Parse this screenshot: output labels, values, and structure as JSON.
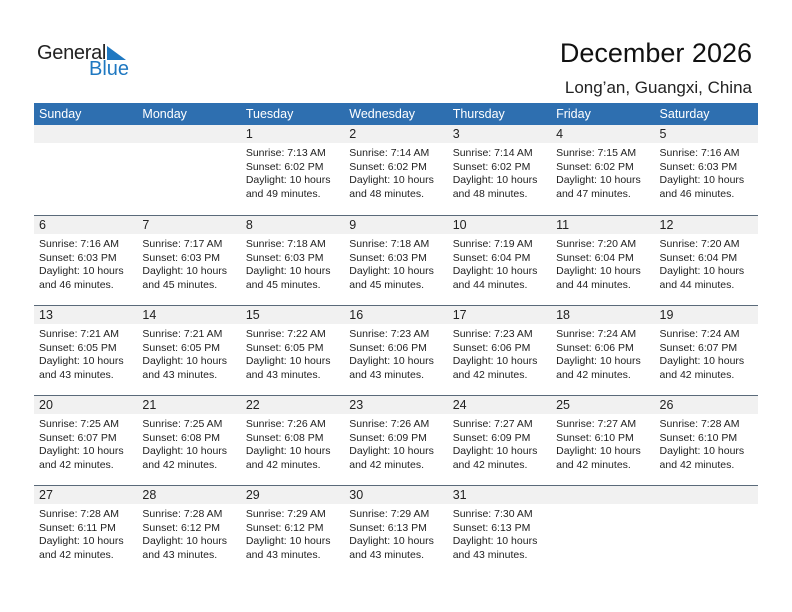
{
  "logo": {
    "general": "General",
    "blue": "Blue"
  },
  "title": "December 2026",
  "location": "Long’an, Guangxi, China",
  "colors": {
    "header": "#2e6fb0",
    "logo_blue": "#1f78c1"
  },
  "days": [
    "Sunday",
    "Monday",
    "Tuesday",
    "Wednesday",
    "Thursday",
    "Friday",
    "Saturday"
  ],
  "weeks": [
    [
      null,
      null,
      {
        "day": "1",
        "sunrise": "Sunrise: 7:13 AM",
        "sunset": "Sunset: 6:02 PM",
        "daylight": "Daylight: 10 hours",
        "minutes": "and 49 minutes."
      },
      {
        "day": "2",
        "sunrise": "Sunrise: 7:14 AM",
        "sunset": "Sunset: 6:02 PM",
        "daylight": "Daylight: 10 hours",
        "minutes": "and 48 minutes."
      },
      {
        "day": "3",
        "sunrise": "Sunrise: 7:14 AM",
        "sunset": "Sunset: 6:02 PM",
        "daylight": "Daylight: 10 hours",
        "minutes": "and 48 minutes."
      },
      {
        "day": "4",
        "sunrise": "Sunrise: 7:15 AM",
        "sunset": "Sunset: 6:02 PM",
        "daylight": "Daylight: 10 hours",
        "minutes": "and 47 minutes."
      },
      {
        "day": "5",
        "sunrise": "Sunrise: 7:16 AM",
        "sunset": "Sunset: 6:03 PM",
        "daylight": "Daylight: 10 hours",
        "minutes": "and 46 minutes."
      }
    ],
    [
      {
        "day": "6",
        "sunrise": "Sunrise: 7:16 AM",
        "sunset": "Sunset: 6:03 PM",
        "daylight": "Daylight: 10 hours",
        "minutes": "and 46 minutes."
      },
      {
        "day": "7",
        "sunrise": "Sunrise: 7:17 AM",
        "sunset": "Sunset: 6:03 PM",
        "daylight": "Daylight: 10 hours",
        "minutes": "and 45 minutes."
      },
      {
        "day": "8",
        "sunrise": "Sunrise: 7:18 AM",
        "sunset": "Sunset: 6:03 PM",
        "daylight": "Daylight: 10 hours",
        "minutes": "and 45 minutes."
      },
      {
        "day": "9",
        "sunrise": "Sunrise: 7:18 AM",
        "sunset": "Sunset: 6:03 PM",
        "daylight": "Daylight: 10 hours",
        "minutes": "and 45 minutes."
      },
      {
        "day": "10",
        "sunrise": "Sunrise: 7:19 AM",
        "sunset": "Sunset: 6:04 PM",
        "daylight": "Daylight: 10 hours",
        "minutes": "and 44 minutes."
      },
      {
        "day": "11",
        "sunrise": "Sunrise: 7:20 AM",
        "sunset": "Sunset: 6:04 PM",
        "daylight": "Daylight: 10 hours",
        "minutes": "and 44 minutes."
      },
      {
        "day": "12",
        "sunrise": "Sunrise: 7:20 AM",
        "sunset": "Sunset: 6:04 PM",
        "daylight": "Daylight: 10 hours",
        "minutes": "and 44 minutes."
      }
    ],
    [
      {
        "day": "13",
        "sunrise": "Sunrise: 7:21 AM",
        "sunset": "Sunset: 6:05 PM",
        "daylight": "Daylight: 10 hours",
        "minutes": "and 43 minutes."
      },
      {
        "day": "14",
        "sunrise": "Sunrise: 7:21 AM",
        "sunset": "Sunset: 6:05 PM",
        "daylight": "Daylight: 10 hours",
        "minutes": "and 43 minutes."
      },
      {
        "day": "15",
        "sunrise": "Sunrise: 7:22 AM",
        "sunset": "Sunset: 6:05 PM",
        "daylight": "Daylight: 10 hours",
        "minutes": "and 43 minutes."
      },
      {
        "day": "16",
        "sunrise": "Sunrise: 7:23 AM",
        "sunset": "Sunset: 6:06 PM",
        "daylight": "Daylight: 10 hours",
        "minutes": "and 43 minutes."
      },
      {
        "day": "17",
        "sunrise": "Sunrise: 7:23 AM",
        "sunset": "Sunset: 6:06 PM",
        "daylight": "Daylight: 10 hours",
        "minutes": "and 42 minutes."
      },
      {
        "day": "18",
        "sunrise": "Sunrise: 7:24 AM",
        "sunset": "Sunset: 6:06 PM",
        "daylight": "Daylight: 10 hours",
        "minutes": "and 42 minutes."
      },
      {
        "day": "19",
        "sunrise": "Sunrise: 7:24 AM",
        "sunset": "Sunset: 6:07 PM",
        "daylight": "Daylight: 10 hours",
        "minutes": "and 42 minutes."
      }
    ],
    [
      {
        "day": "20",
        "sunrise": "Sunrise: 7:25 AM",
        "sunset": "Sunset: 6:07 PM",
        "daylight": "Daylight: 10 hours",
        "minutes": "and 42 minutes."
      },
      {
        "day": "21",
        "sunrise": "Sunrise: 7:25 AM",
        "sunset": "Sunset: 6:08 PM",
        "daylight": "Daylight: 10 hours",
        "minutes": "and 42 minutes."
      },
      {
        "day": "22",
        "sunrise": "Sunrise: 7:26 AM",
        "sunset": "Sunset: 6:08 PM",
        "daylight": "Daylight: 10 hours",
        "minutes": "and 42 minutes."
      },
      {
        "day": "23",
        "sunrise": "Sunrise: 7:26 AM",
        "sunset": "Sunset: 6:09 PM",
        "daylight": "Daylight: 10 hours",
        "minutes": "and 42 minutes."
      },
      {
        "day": "24",
        "sunrise": "Sunrise: 7:27 AM",
        "sunset": "Sunset: 6:09 PM",
        "daylight": "Daylight: 10 hours",
        "minutes": "and 42 minutes."
      },
      {
        "day": "25",
        "sunrise": "Sunrise: 7:27 AM",
        "sunset": "Sunset: 6:10 PM",
        "daylight": "Daylight: 10 hours",
        "minutes": "and 42 minutes."
      },
      {
        "day": "26",
        "sunrise": "Sunrise: 7:28 AM",
        "sunset": "Sunset: 6:10 PM",
        "daylight": "Daylight: 10 hours",
        "minutes": "and 42 minutes."
      }
    ],
    [
      {
        "day": "27",
        "sunrise": "Sunrise: 7:28 AM",
        "sunset": "Sunset: 6:11 PM",
        "daylight": "Daylight: 10 hours",
        "minutes": "and 42 minutes."
      },
      {
        "day": "28",
        "sunrise": "Sunrise: 7:28 AM",
        "sunset": "Sunset: 6:12 PM",
        "daylight": "Daylight: 10 hours",
        "minutes": "and 43 minutes."
      },
      {
        "day": "29",
        "sunrise": "Sunrise: 7:29 AM",
        "sunset": "Sunset: 6:12 PM",
        "daylight": "Daylight: 10 hours",
        "minutes": "and 43 minutes."
      },
      {
        "day": "30",
        "sunrise": "Sunrise: 7:29 AM",
        "sunset": "Sunset: 6:13 PM",
        "daylight": "Daylight: 10 hours",
        "minutes": "and 43 minutes."
      },
      {
        "day": "31",
        "sunrise": "Sunrise: 7:30 AM",
        "sunset": "Sunset: 6:13 PM",
        "daylight": "Daylight: 10 hours",
        "minutes": "and 43 minutes."
      },
      null,
      null
    ]
  ]
}
